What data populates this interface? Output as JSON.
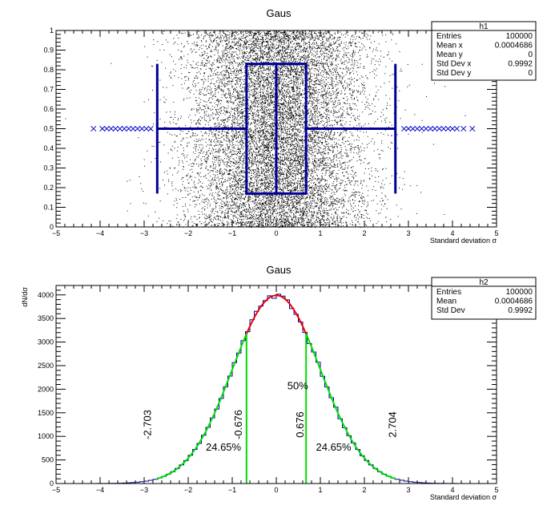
{
  "chart_data": [
    {
      "type": "scatter",
      "title": "Gaus",
      "xlabel": "Standard deviation σ",
      "ylabel": "",
      "xlim": [
        -5,
        5
      ],
      "ylim": [
        0,
        1
      ],
      "x_ticks": [
        "−5",
        "−4",
        "−3",
        "−2",
        "−1",
        "0",
        "1",
        "2",
        "3",
        "4",
        "5"
      ],
      "y_ticks": [
        "0",
        "0.1",
        "0.2",
        "0.3",
        "0.4",
        "0.5",
        "0.6",
        "0.7",
        "0.8",
        "0.9",
        "1"
      ],
      "distribution": {
        "mean_x": 0.0004686,
        "std_x": 0.9992,
        "y_min": 0,
        "y_max": 1
      },
      "box": {
        "q1": -0.676,
        "median": 0.0,
        "q3": 0.676,
        "y_low": 0.17,
        "y_high": 0.83,
        "y_center": 0.5
      },
      "whiskers": {
        "low": -2.703,
        "high": 2.704
      },
      "outliers": [
        -4.15,
        -3.95,
        -3.85,
        -3.75,
        -3.65,
        -3.55,
        -3.45,
        -3.35,
        -3.25,
        -3.15,
        -3.05,
        -2.95,
        -2.85,
        2.9,
        3.0,
        3.1,
        3.2,
        3.3,
        3.4,
        3.5,
        3.6,
        3.7,
        3.8,
        3.9,
        4.0,
        4.1,
        4.25,
        4.45
      ],
      "colors": {
        "points": "#000000",
        "box": "#000099",
        "outlier": "#0000cc"
      },
      "stats": {
        "name": "h1",
        "rows": [
          {
            "label": "Entries",
            "value": "100000"
          },
          {
            "label": "Mean x",
            "value": "0.0004686"
          },
          {
            "label": "Mean y",
            "value": "0"
          },
          {
            "label": "Std Dev x",
            "value": "0.9992"
          },
          {
            "label": "Std Dev y",
            "value": "0"
          }
        ]
      }
    },
    {
      "type": "line",
      "title": "Gaus",
      "xlabel": "Standard deviation σ",
      "ylabel": "dN/dσ",
      "xlim": [
        -5,
        5
      ],
      "ylim": [
        0,
        4200
      ],
      "x_ticks": [
        "−5",
        "−4",
        "−3",
        "−2",
        "−1",
        "0",
        "1",
        "2",
        "3",
        "4",
        "5"
      ],
      "y_ticks": [
        "0",
        "500",
        "1000",
        "1500",
        "2000",
        "2500",
        "3000",
        "3500",
        "4000"
      ],
      "histogram": {
        "bin_width": 0.1,
        "x_min": -5,
        "x_max": 5,
        "entries": 100000,
        "mean": 0.0004686,
        "std": 0.9992,
        "peak": 3990
      },
      "fit_segments": [
        {
          "name": "red",
          "from": -0.676,
          "to": 0.676,
          "color": "#ee0000"
        },
        {
          "name": "green",
          "from": -2.703,
          "to": -0.676,
          "color": "#00dd00"
        },
        {
          "name": "green",
          "from": 0.676,
          "to": 2.704,
          "color": "#00dd00"
        }
      ],
      "vlines": [
        -0.676,
        0.676
      ],
      "annotations": [
        {
          "text": "-2.703",
          "x": -2.85,
          "y": 1250,
          "rotate": true
        },
        {
          "text": "-0.676",
          "x": -0.78,
          "y": 1250,
          "rotate": true
        },
        {
          "text": "0.676",
          "x": 0.62,
          "y": 1250,
          "rotate": true
        },
        {
          "text": "2.704",
          "x": 2.72,
          "y": 1250,
          "rotate": true
        },
        {
          "text": "50%",
          "x": 0.25,
          "y": 2000,
          "rotate": false
        },
        {
          "text": "24.65%",
          "x": -1.6,
          "y": 700,
          "rotate": false
        },
        {
          "text": "24.65%",
          "x": 0.9,
          "y": 700,
          "rotate": false
        }
      ],
      "colors": {
        "hist": "#000099",
        "fit_core": "#ee0000",
        "fit_tail": "#00dd00",
        "vline": "#00dd00"
      },
      "stats": {
        "name": "h2",
        "rows": [
          {
            "label": "Entries",
            "value": "100000"
          },
          {
            "label": "Mean",
            "value": "0.0004686"
          },
          {
            "label": "Std Dev",
            "value": "0.9992"
          }
        ]
      }
    }
  ]
}
